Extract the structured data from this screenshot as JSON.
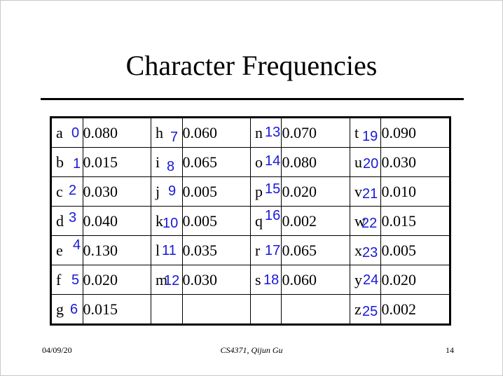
{
  "title": "Character Frequencies",
  "table": {
    "rows": [
      [
        {
          "ch": "a",
          "ix": "0",
          "val": "0.080"
        },
        {
          "ch": "h",
          "ix": "7",
          "val": "0.060"
        },
        {
          "ch": "n",
          "ix": "13",
          "val": "0.070"
        },
        {
          "ch": "t",
          "ix": "19",
          "val": "0.090"
        }
      ],
      [
        {
          "ch": "b",
          "ix": "1",
          "val": "0.015"
        },
        {
          "ch": "i",
          "ix": "8",
          "val": "0.065"
        },
        {
          "ch": "o",
          "ix": "14",
          "val": "0.080"
        },
        {
          "ch": "u",
          "ix": "20",
          "val": "0.030"
        }
      ],
      [
        {
          "ch": "c",
          "ix": "2",
          "val": "0.030"
        },
        {
          "ch": "j",
          "ix": "9",
          "val": "0.005"
        },
        {
          "ch": "p",
          "ix": "15",
          "val": "0.020"
        },
        {
          "ch": "v",
          "ix": "21",
          "val": "0.010"
        }
      ],
      [
        {
          "ch": "d",
          "ix": "3",
          "val": "0.040"
        },
        {
          "ch": "k",
          "ix": "10",
          "val": "0.005"
        },
        {
          "ch": "q",
          "ix": "16",
          "val": "0.002"
        },
        {
          "ch": "w",
          "ix": "22",
          "val": "0.015"
        }
      ],
      [
        {
          "ch": "e",
          "ix": "4",
          "val": "0.130"
        },
        {
          "ch": "l",
          "ix": "11",
          "val": "0.035"
        },
        {
          "ch": "r",
          "ix": "17",
          "val": "0.065"
        },
        {
          "ch": "x",
          "ix": "23",
          "val": "0.005"
        }
      ],
      [
        {
          "ch": "f",
          "ix": "5",
          "val": "0.020"
        },
        {
          "ch": "m",
          "ix": "12",
          "val": "0.030"
        },
        {
          "ch": "s",
          "ix": "18",
          "val": "0.060"
        },
        {
          "ch": "y",
          "ix": "24",
          "val": "0.020"
        }
      ],
      [
        {
          "ch": "g",
          "ix": "6",
          "val": "0.015"
        },
        null,
        null,
        {
          "ch": "z",
          "ix": "25",
          "val": "0.002"
        }
      ]
    ]
  },
  "footer": {
    "date": "04/09/20",
    "center": "CS4371, Qijun Gu",
    "page": "14"
  }
}
